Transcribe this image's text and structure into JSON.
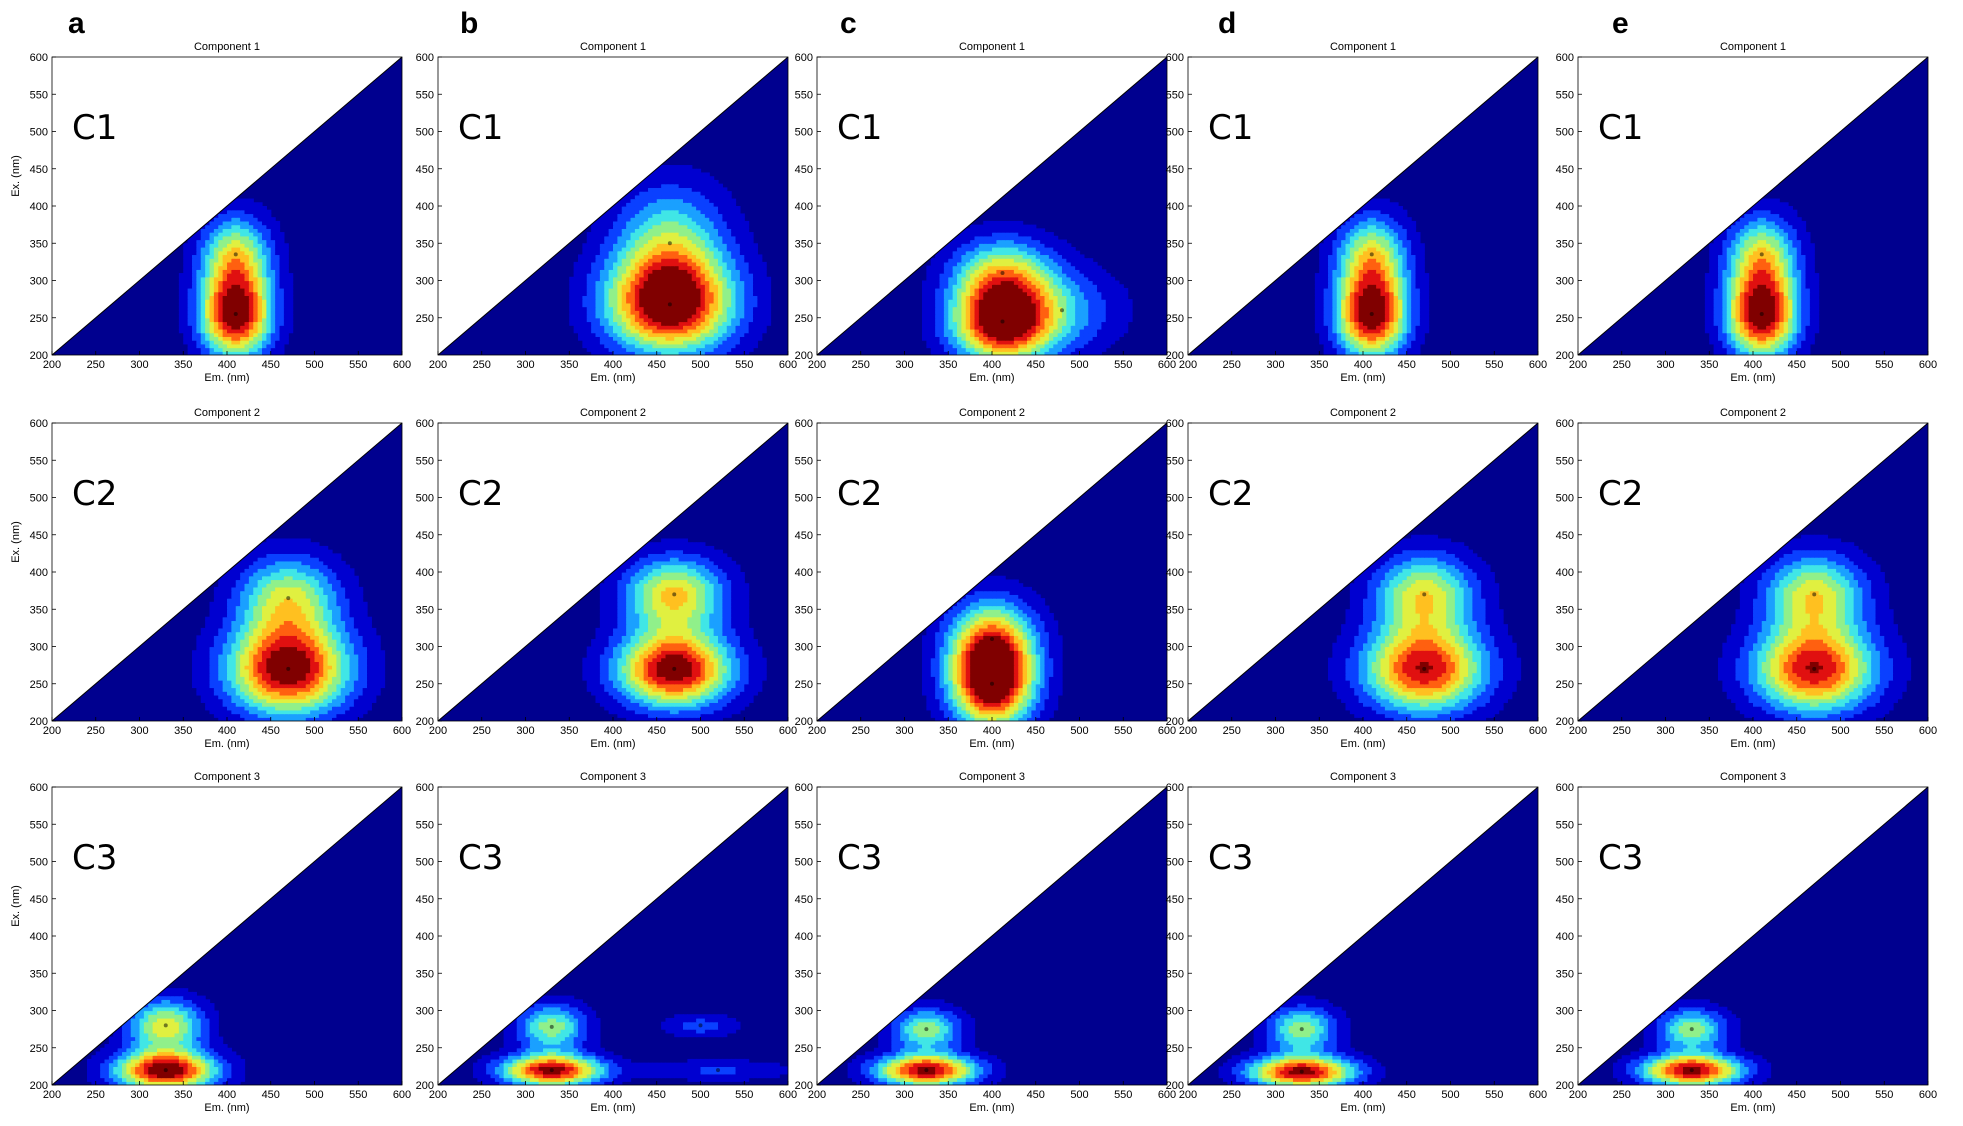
{
  "figure": {
    "panel_letters": [
      "a",
      "b",
      "c",
      "d",
      "e"
    ],
    "colors": {
      "background": "#00008F",
      "levels": [
        "#0000D0",
        "#0A40FF",
        "#1AA0FF",
        "#40E6E6",
        "#90F08A",
        "#E0F040",
        "#FFC020",
        "#FF6010",
        "#E01010",
        "#800000"
      ],
      "contour_line": "#000000"
    }
  },
  "chart_data": [
    {
      "type": "heatmap",
      "panel": "a",
      "row": 1,
      "label": "C1",
      "title": "Component 1",
      "xlabel": "Em. (nm)",
      "ylabel": "Ex. (nm)",
      "xlim": [
        200,
        600
      ],
      "ylim": [
        200,
        600
      ],
      "xticks": [
        200,
        250,
        300,
        350,
        400,
        450,
        500,
        550,
        600
      ],
      "yticks": [
        200,
        250,
        300,
        350,
        400,
        450,
        500,
        550,
        600
      ],
      "peaks": [
        {
          "em": 410,
          "ex": 255,
          "intensity": 1.0,
          "sx": 28,
          "sy": 40
        },
        {
          "em": 410,
          "ex": 335,
          "intensity": 0.55,
          "sx": 28,
          "sy": 38
        }
      ]
    },
    {
      "type": "heatmap",
      "panel": "b",
      "row": 1,
      "label": "C1",
      "title": "Component 1",
      "xlabel": "Em. (nm)",
      "ylabel": "Ex. (nm)",
      "xlim": [
        200,
        600
      ],
      "ylim": [
        200,
        600
      ],
      "xticks": [
        200,
        250,
        300,
        350,
        400,
        450,
        500,
        550,
        600
      ],
      "yticks": [
        250,
        300,
        350,
        400,
        450,
        500,
        550,
        600
      ],
      "peaks": [
        {
          "em": 465,
          "ex": 268,
          "intensity": 1.0,
          "sx": 50,
          "sy": 45
        },
        {
          "em": 465,
          "ex": 350,
          "intensity": 0.45,
          "sx": 45,
          "sy": 55
        }
      ]
    },
    {
      "type": "heatmap",
      "panel": "c",
      "row": 1,
      "label": "C1",
      "title": "Component 1",
      "xlabel": "Em. (nm)",
      "ylabel": "Ex. (nm)",
      "xlim": [
        200,
        600
      ],
      "ylim": [
        200,
        600
      ],
      "xticks": [
        200,
        250,
        300,
        350,
        400,
        450,
        500,
        550,
        600
      ],
      "yticks": [
        200,
        250,
        300,
        350,
        400,
        450,
        500,
        550,
        600
      ],
      "peaks": [
        {
          "em": 412,
          "ex": 245,
          "intensity": 1.0,
          "sx": 40,
          "sy": 38
        },
        {
          "em": 412,
          "ex": 310,
          "intensity": 0.5,
          "sx": 40,
          "sy": 35
        },
        {
          "em": 480,
          "ex": 260,
          "intensity": 0.25,
          "sx": 50,
          "sy": 40
        }
      ]
    },
    {
      "type": "heatmap",
      "panel": "d",
      "row": 1,
      "label": "C1",
      "title": "Component 1",
      "xlabel": "Em. (nm)",
      "ylabel": "Ex. (nm)",
      "xlim": [
        200,
        600
      ],
      "ylim": [
        200,
        600
      ],
      "xticks": [
        200,
        250,
        300,
        350,
        400,
        450,
        500,
        550,
        600
      ],
      "yticks": [
        200,
        250,
        300,
        350,
        400,
        450,
        500,
        550,
        600
      ],
      "peaks": [
        {
          "em": 410,
          "ex": 255,
          "intensity": 1.0,
          "sx": 28,
          "sy": 40
        },
        {
          "em": 410,
          "ex": 335,
          "intensity": 0.55,
          "sx": 28,
          "sy": 38
        }
      ]
    },
    {
      "type": "heatmap",
      "panel": "e",
      "row": 1,
      "label": "C1",
      "title": "Component 1",
      "xlabel": "Em. (nm)",
      "ylabel": "Ex. (nm)",
      "xlim": [
        200,
        600
      ],
      "ylim": [
        200,
        600
      ],
      "xticks": [
        200,
        250,
        300,
        350,
        400,
        450,
        500,
        550,
        600
      ],
      "yticks": [
        200,
        250,
        300,
        350,
        400,
        450,
        500,
        550,
        600
      ],
      "peaks": [
        {
          "em": 410,
          "ex": 255,
          "intensity": 1.0,
          "sx": 28,
          "sy": 40
        },
        {
          "em": 410,
          "ex": 335,
          "intensity": 0.55,
          "sx": 28,
          "sy": 38
        }
      ]
    },
    {
      "type": "heatmap",
      "panel": "a",
      "row": 2,
      "label": "C2",
      "title": "Component 2",
      "xlabel": "Em. (nm)",
      "ylabel": "Ex. (nm)",
      "xlim": [
        200,
        600
      ],
      "ylim": [
        200,
        600
      ],
      "xticks": [
        200,
        250,
        300,
        350,
        400,
        450,
        500,
        550,
        600
      ],
      "yticks": [
        200,
        250,
        300,
        350,
        400,
        450,
        500,
        550,
        600
      ],
      "peaks": [
        {
          "em": 470,
          "ex": 270,
          "intensity": 1.0,
          "sx": 48,
          "sy": 42
        },
        {
          "em": 470,
          "ex": 365,
          "intensity": 0.55,
          "sx": 40,
          "sy": 40
        }
      ]
    },
    {
      "type": "heatmap",
      "panel": "b",
      "row": 2,
      "label": "C2",
      "title": "Component 2",
      "xlabel": "Em. (nm)",
      "ylabel": "Ex. (nm)",
      "xlim": [
        200,
        600
      ],
      "ylim": [
        200,
        600
      ],
      "xticks": [
        200,
        250,
        300,
        350,
        400,
        450,
        500,
        550,
        600
      ],
      "yticks": [
        200,
        250,
        300,
        350,
        400,
        450,
        500,
        550,
        600
      ],
      "peaks": [
        {
          "em": 470,
          "ex": 270,
          "intensity": 1.0,
          "sx": 45,
          "sy": 35
        },
        {
          "em": 470,
          "ex": 370,
          "intensity": 0.65,
          "sx": 40,
          "sy": 35
        }
      ]
    },
    {
      "type": "heatmap",
      "panel": "c",
      "row": 2,
      "label": "C2",
      "title": "Component 2",
      "xlabel": "Em. (nm)",
      "ylabel": "Ex. (nm)",
      "xlim": [
        200,
        600
      ],
      "ylim": [
        200,
        600
      ],
      "xticks": [
        200,
        250,
        300,
        350,
        400,
        450,
        500,
        550,
        600
      ],
      "yticks": [
        200,
        250,
        300,
        350,
        400,
        450,
        500,
        550,
        600
      ],
      "peaks": [
        {
          "em": 400,
          "ex": 250,
          "intensity": 1.0,
          "sx": 33,
          "sy": 42
        },
        {
          "em": 400,
          "ex": 310,
          "intensity": 0.6,
          "sx": 35,
          "sy": 40
        }
      ]
    },
    {
      "type": "heatmap",
      "panel": "d",
      "row": 2,
      "label": "C2",
      "title": "Component 2",
      "xlabel": "Em. (nm)",
      "ylabel": "Ex. (nm)",
      "xlim": [
        200,
        600
      ],
      "ylim": [
        200,
        600
      ],
      "xticks": [
        200,
        250,
        300,
        350,
        400,
        450,
        500,
        550,
        600
      ],
      "yticks": [
        200,
        250,
        300,
        350,
        400,
        450,
        500,
        550,
        600
      ],
      "peaks": [
        {
          "em": 470,
          "ex": 270,
          "intensity": 0.9,
          "sx": 48,
          "sy": 40
        },
        {
          "em": 470,
          "ex": 370,
          "intensity": 0.6,
          "sx": 40,
          "sy": 38
        }
      ]
    },
    {
      "type": "heatmap",
      "panel": "e",
      "row": 2,
      "label": "C2",
      "title": "Component 2",
      "xlabel": "Em. (nm)",
      "ylabel": "Ex. (nm)",
      "xlim": [
        200,
        600
      ],
      "ylim": [
        200,
        600
      ],
      "xticks": [
        200,
        250,
        300,
        350,
        400,
        450,
        500,
        550,
        600
      ],
      "yticks": [
        200,
        250,
        300,
        350,
        400,
        450,
        500,
        550,
        600
      ],
      "peaks": [
        {
          "em": 470,
          "ex": 270,
          "intensity": 0.9,
          "sx": 48,
          "sy": 40
        },
        {
          "em": 470,
          "ex": 370,
          "intensity": 0.6,
          "sx": 40,
          "sy": 38
        }
      ]
    },
    {
      "type": "heatmap",
      "panel": "a",
      "row": 3,
      "label": "C3",
      "title": "Component 3",
      "xlabel": "Em. (nm)",
      "ylabel": "Ex. (nm)",
      "xlim": [
        200,
        600
      ],
      "ylim": [
        200,
        600
      ],
      "xticks": [
        200,
        250,
        300,
        350,
        400,
        450,
        500,
        550,
        600
      ],
      "yticks": [
        200,
        250,
        300,
        350,
        400,
        450,
        500,
        550,
        600
      ],
      "peaks": [
        {
          "em": 330,
          "ex": 220,
          "intensity": 1.0,
          "sx": 40,
          "sy": 18
        },
        {
          "em": 330,
          "ex": 280,
          "intensity": 0.6,
          "sx": 30,
          "sy": 25
        }
      ]
    },
    {
      "type": "heatmap",
      "panel": "b",
      "row": 3,
      "label": "C3",
      "title": "Component 3",
      "xlabel": "Em. (nm)",
      "ylabel": "Ex. (nm)",
      "xlim": [
        200,
        600
      ],
      "ylim": [
        200,
        600
      ],
      "xticks": [
        200,
        250,
        300,
        350,
        400,
        450,
        500,
        550,
        600
      ],
      "yticks": [
        200,
        250,
        300,
        350,
        400,
        450,
        500,
        550,
        600
      ],
      "peaks": [
        {
          "em": 330,
          "ex": 220,
          "intensity": 0.95,
          "sx": 40,
          "sy": 15
        },
        {
          "em": 330,
          "ex": 278,
          "intensity": 0.5,
          "sx": 28,
          "sy": 22
        },
        {
          "em": 500,
          "ex": 280,
          "intensity": 0.2,
          "sx": 30,
          "sy": 12
        },
        {
          "em": 520,
          "ex": 220,
          "intensity": 0.18,
          "sx": 60,
          "sy": 10
        }
      ]
    },
    {
      "type": "heatmap",
      "panel": "c",
      "row": 3,
      "label": "C3",
      "title": "Component 3",
      "xlabel": "Em. (nm)",
      "ylabel": "Ex. (nm)",
      "xlim": [
        200,
        600
      ],
      "ylim": [
        200,
        600
      ],
      "xticks": [
        200,
        250,
        300,
        350,
        400,
        450,
        500,
        550,
        600
      ],
      "yticks": [
        200,
        250,
        300,
        350,
        400,
        450,
        500,
        550,
        600
      ],
      "peaks": [
        {
          "em": 325,
          "ex": 220,
          "intensity": 0.95,
          "sx": 40,
          "sy": 15
        },
        {
          "em": 325,
          "ex": 275,
          "intensity": 0.5,
          "sx": 28,
          "sy": 20
        }
      ]
    },
    {
      "type": "heatmap",
      "panel": "d",
      "row": 3,
      "label": "C3",
      "title": "Component 3",
      "xlabel": "Em. (nm)",
      "ylabel": "Ex. (nm)",
      "xlim": [
        200,
        600
      ],
      "ylim": [
        200,
        600
      ],
      "xticks": [
        200,
        250,
        300,
        350,
        400,
        450,
        500,
        550,
        600
      ],
      "yticks": [
        200,
        250,
        300,
        350,
        400,
        450,
        500,
        550,
        600
      ],
      "peaks": [
        {
          "em": 330,
          "ex": 218,
          "intensity": 0.95,
          "sx": 42,
          "sy": 15
        },
        {
          "em": 330,
          "ex": 275,
          "intensity": 0.5,
          "sx": 28,
          "sy": 22
        }
      ]
    },
    {
      "type": "heatmap",
      "panel": "e",
      "row": 3,
      "label": "C3",
      "title": "Component 3",
      "xlabel": "Em. (nm)",
      "ylabel": "Ex. (nm)",
      "xlim": [
        200,
        600
      ],
      "ylim": [
        200,
        600
      ],
      "xticks": [
        200,
        250,
        300,
        350,
        400,
        450,
        500,
        550,
        600
      ],
      "yticks": [
        200,
        250,
        300,
        350,
        400,
        450,
        500,
        550,
        600
      ],
      "peaks": [
        {
          "em": 330,
          "ex": 220,
          "intensity": 0.95,
          "sx": 40,
          "sy": 15
        },
        {
          "em": 330,
          "ex": 275,
          "intensity": 0.5,
          "sx": 28,
          "sy": 20
        }
      ]
    }
  ]
}
